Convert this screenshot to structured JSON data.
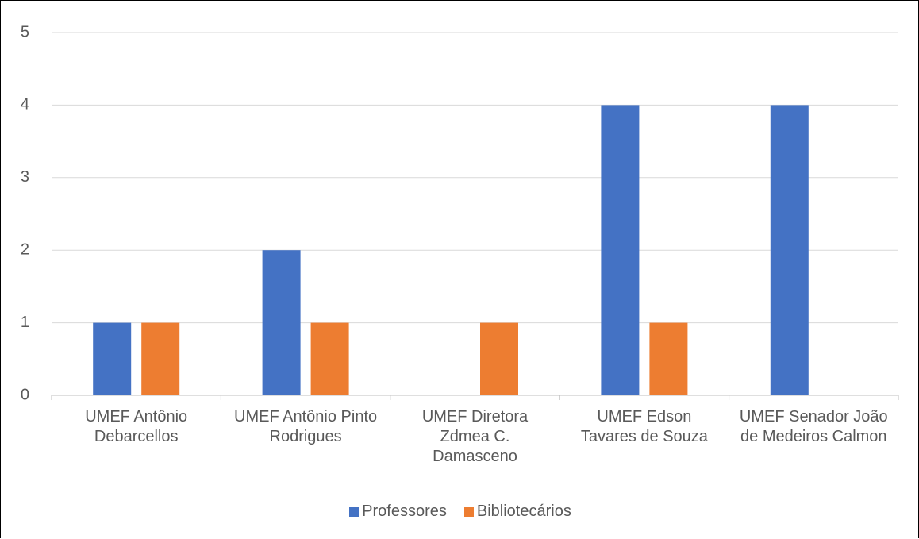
{
  "chart_data": {
    "type": "bar",
    "categories": [
      "UMEF Antônio Debarcellos",
      "UMEF Antônio Pinto Rodrigues",
      "UMEF Diretora Zdmea C. Damasceno",
      "UMEF Edson Tavares de Souza",
      "UMEF Senador João de Medeiros Calmon"
    ],
    "series": [
      {
        "name": "Professores",
        "color": "#4472c4",
        "values": [
          1,
          2,
          0,
          4,
          4
        ]
      },
      {
        "name": "Bibliotecários",
        "color": "#ed7d31",
        "values": [
          1,
          1,
          1,
          1,
          0
        ]
      }
    ],
    "ylim": [
      0,
      5
    ],
    "yticks": [
      0,
      1,
      2,
      3,
      4,
      5
    ],
    "grid": true,
    "legend": "bottom"
  }
}
